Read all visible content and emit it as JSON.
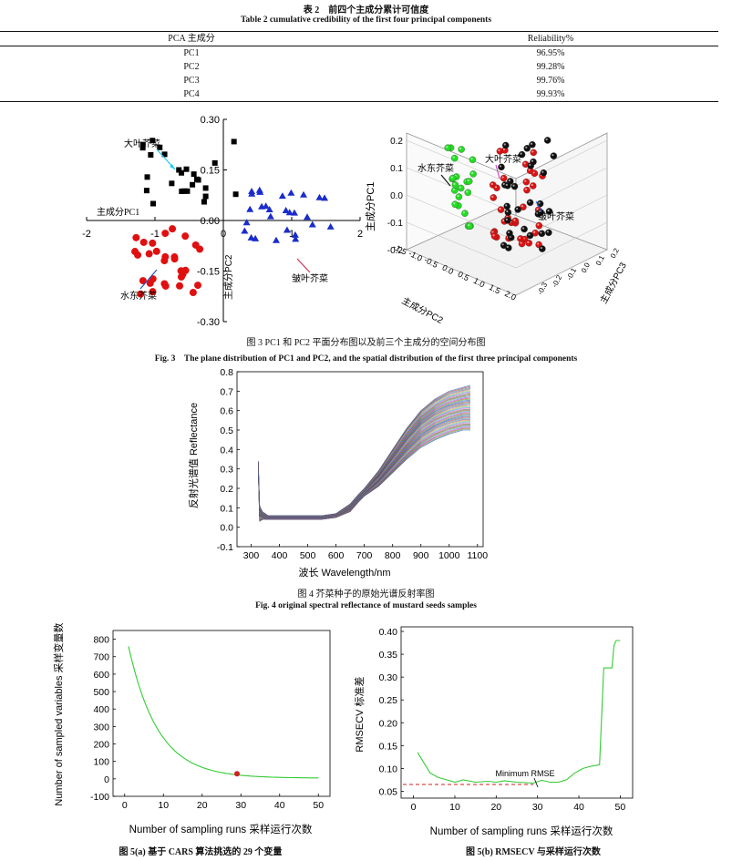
{
  "table2": {
    "title_cn": "表 2　前四个主成分累计可信度",
    "title_en": "Table 2 cumulative credibility of the first four principal components",
    "headers": [
      "PCA 主成分",
      "Reliability%"
    ],
    "rows": [
      {
        "pc": "PC1",
        "value": "96.95%"
      },
      {
        "pc": "PC2",
        "value": "99.28%"
      },
      {
        "pc": "PC3",
        "value": "99.76%"
      },
      {
        "pc": "PC4",
        "value": "99.93%"
      }
    ]
  },
  "fig3": {
    "caption_cn": "图 3 PC1 和 PC2 平面分布图以及前三个主成分的空间分布图",
    "caption_en": "Fig. 3　The plane distribution of PC1 and PC2, and the spatial distribution of the first three principal components",
    "left_plot": {
      "xaxis_label": "主成分PC1",
      "yaxis_label": "主成分PC2",
      "xticks": [
        "-2",
        "-1",
        "0",
        "1",
        "2"
      ],
      "yticks": [
        "0.30",
        "0.15",
        "0.00",
        "-0.15",
        "-0.30"
      ],
      "annotations": [
        "大叶芥菜",
        "水东芥菜",
        "皱叶芥菜"
      ]
    },
    "right_plot": {
      "zaxis_label": "主成分PC1",
      "xaxis_label": "主成分PC2",
      "yaxis_label": "主成分PC3",
      "zticks": [
        "0.2",
        "0.1",
        "0.0",
        "-0.1",
        "-0.2"
      ],
      "xticks": [
        "-1.5",
        "-1.0",
        "-0.5",
        "0.0",
        "0.5",
        "1.0",
        "1.5",
        "2.0"
      ],
      "yticks": [
        "-0.3",
        "-0.2",
        "-0.1",
        "0.0",
        "0.1",
        "0.2"
      ],
      "annotations": [
        "水东芥菜",
        "大叶芥菜",
        "皱叶芥菜"
      ]
    }
  },
  "fig4": {
    "caption_cn": "图 4 芥菜种子的原始光谱反射率图",
    "caption_en": "Fig. 4 original spectral reflectance of mustard seeds samples",
    "chart_data": {
      "type": "line",
      "title": "",
      "xlabel": "波长 Wavelength/nm",
      "ylabel": "反射光谱值 Reflectance",
      "xlim": [
        250,
        1120
      ],
      "ylim": [
        -0.1,
        0.8
      ],
      "xticks": [
        "300",
        "400",
        "500",
        "600",
        "700",
        "800",
        "900",
        "1000",
        "1100"
      ],
      "yticks": [
        "0.8",
        "0.7",
        "0.6",
        "0.5",
        "0.4",
        "0.3",
        "0.2",
        "0.1",
        "0.0",
        "-0.1"
      ],
      "x": [
        325,
        330,
        340,
        360,
        400,
        450,
        500,
        550,
        600,
        650,
        680,
        700,
        750,
        800,
        850,
        900,
        950,
        1000,
        1050,
        1075
      ],
      "series_envelope": {
        "low": [
          0.29,
          0.03,
          0.04,
          0.04,
          0.04,
          0.04,
          0.04,
          0.04,
          0.05,
          0.08,
          0.13,
          0.16,
          0.21,
          0.28,
          0.35,
          0.41,
          0.45,
          0.48,
          0.5,
          0.5
        ],
        "mid": [
          0.32,
          0.08,
          0.06,
          0.05,
          0.05,
          0.05,
          0.05,
          0.05,
          0.06,
          0.1,
          0.15,
          0.18,
          0.25,
          0.34,
          0.43,
          0.51,
          0.56,
          0.59,
          0.61,
          0.61
        ],
        "high": [
          0.34,
          0.11,
          0.08,
          0.06,
          0.06,
          0.06,
          0.06,
          0.06,
          0.07,
          0.12,
          0.17,
          0.2,
          0.29,
          0.4,
          0.51,
          0.6,
          0.66,
          0.7,
          0.72,
          0.73
        ]
      }
    }
  },
  "fig5a": {
    "caption": "图 5(a) 基于 CARS 算法挑选的 29 个变量",
    "chart_data": {
      "type": "line",
      "xlabel": "Number of sampling runs 采样运行次数",
      "ylabel": "Number of sampled variables 采样变量数",
      "xlim": [
        -3,
        53
      ],
      "ylim": [
        -100,
        850
      ],
      "xticks": [
        "0",
        "10",
        "20",
        "30",
        "40",
        "50"
      ],
      "yticks": [
        "800",
        "700",
        "600",
        "500",
        "400",
        "300",
        "200",
        "100",
        "0",
        "-100"
      ],
      "x": [
        1,
        3,
        5,
        7,
        10,
        13,
        16,
        20,
        25,
        29,
        35,
        40,
        45,
        50
      ],
      "values": [
        750,
        590,
        470,
        370,
        260,
        185,
        130,
        80,
        40,
        29,
        16,
        10,
        6,
        4
      ],
      "marker": {
        "x": 29,
        "y": 29
      }
    }
  },
  "fig5b": {
    "caption": "图 5(b) RMSECV 与采样运行次数",
    "chart_data": {
      "type": "line",
      "xlabel": "Number of sampling runs 采样运行次数",
      "ylabel": "RMSECV 标准差",
      "xlim": [
        -3,
        53
      ],
      "ylim": [
        0.035,
        0.41
      ],
      "xticks": [
        "0",
        "10",
        "20",
        "30",
        "40",
        "50"
      ],
      "yticks": [
        "0.40",
        "0.35",
        "0.30",
        "0.25",
        "0.20",
        "0.15",
        "0.10",
        "0.05"
      ],
      "x": [
        1,
        2,
        4,
        6,
        8,
        10,
        12,
        15,
        18,
        20,
        22,
        25,
        27,
        29,
        31,
        33,
        35,
        37,
        39,
        41,
        43,
        45,
        46,
        47,
        48,
        48.5,
        49,
        50
      ],
      "values": [
        0.135,
        0.12,
        0.09,
        0.08,
        0.075,
        0.07,
        0.075,
        0.07,
        0.072,
        0.07,
        0.073,
        0.07,
        0.069,
        0.068,
        0.074,
        0.07,
        0.07,
        0.075,
        0.09,
        0.1,
        0.105,
        0.108,
        0.32,
        0.32,
        0.32,
        0.37,
        0.38,
        0.38
      ],
      "min_line": 0.065,
      "annotation": "Minimum RMSE"
    }
  }
}
